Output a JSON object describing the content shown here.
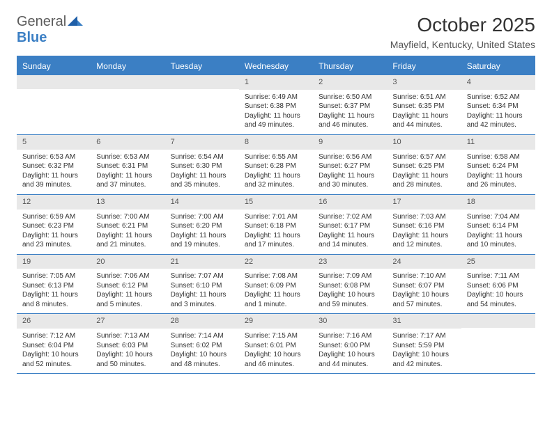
{
  "logo": {
    "text1": "General",
    "text2": "Blue"
  },
  "title": "October 2025",
  "location": "Mayfield, Kentucky, United States",
  "colors": {
    "header_bg": "#3b7fc4",
    "header_text": "#ffffff",
    "day_num_bg": "#e8e8e8",
    "text": "#333333",
    "border": "#3b7fc4"
  },
  "day_names": [
    "Sunday",
    "Monday",
    "Tuesday",
    "Wednesday",
    "Thursday",
    "Friday",
    "Saturday"
  ],
  "weeks": [
    [
      {
        "num": "",
        "sunrise": "",
        "sunset": "",
        "daylight": ""
      },
      {
        "num": "",
        "sunrise": "",
        "sunset": "",
        "daylight": ""
      },
      {
        "num": "",
        "sunrise": "",
        "sunset": "",
        "daylight": ""
      },
      {
        "num": "1",
        "sunrise": "Sunrise: 6:49 AM",
        "sunset": "Sunset: 6:38 PM",
        "daylight": "Daylight: 11 hours and 49 minutes."
      },
      {
        "num": "2",
        "sunrise": "Sunrise: 6:50 AM",
        "sunset": "Sunset: 6:37 PM",
        "daylight": "Daylight: 11 hours and 46 minutes."
      },
      {
        "num": "3",
        "sunrise": "Sunrise: 6:51 AM",
        "sunset": "Sunset: 6:35 PM",
        "daylight": "Daylight: 11 hours and 44 minutes."
      },
      {
        "num": "4",
        "sunrise": "Sunrise: 6:52 AM",
        "sunset": "Sunset: 6:34 PM",
        "daylight": "Daylight: 11 hours and 42 minutes."
      }
    ],
    [
      {
        "num": "5",
        "sunrise": "Sunrise: 6:53 AM",
        "sunset": "Sunset: 6:32 PM",
        "daylight": "Daylight: 11 hours and 39 minutes."
      },
      {
        "num": "6",
        "sunrise": "Sunrise: 6:53 AM",
        "sunset": "Sunset: 6:31 PM",
        "daylight": "Daylight: 11 hours and 37 minutes."
      },
      {
        "num": "7",
        "sunrise": "Sunrise: 6:54 AM",
        "sunset": "Sunset: 6:30 PM",
        "daylight": "Daylight: 11 hours and 35 minutes."
      },
      {
        "num": "8",
        "sunrise": "Sunrise: 6:55 AM",
        "sunset": "Sunset: 6:28 PM",
        "daylight": "Daylight: 11 hours and 32 minutes."
      },
      {
        "num": "9",
        "sunrise": "Sunrise: 6:56 AM",
        "sunset": "Sunset: 6:27 PM",
        "daylight": "Daylight: 11 hours and 30 minutes."
      },
      {
        "num": "10",
        "sunrise": "Sunrise: 6:57 AM",
        "sunset": "Sunset: 6:25 PM",
        "daylight": "Daylight: 11 hours and 28 minutes."
      },
      {
        "num": "11",
        "sunrise": "Sunrise: 6:58 AM",
        "sunset": "Sunset: 6:24 PM",
        "daylight": "Daylight: 11 hours and 26 minutes."
      }
    ],
    [
      {
        "num": "12",
        "sunrise": "Sunrise: 6:59 AM",
        "sunset": "Sunset: 6:23 PM",
        "daylight": "Daylight: 11 hours and 23 minutes."
      },
      {
        "num": "13",
        "sunrise": "Sunrise: 7:00 AM",
        "sunset": "Sunset: 6:21 PM",
        "daylight": "Daylight: 11 hours and 21 minutes."
      },
      {
        "num": "14",
        "sunrise": "Sunrise: 7:00 AM",
        "sunset": "Sunset: 6:20 PM",
        "daylight": "Daylight: 11 hours and 19 minutes."
      },
      {
        "num": "15",
        "sunrise": "Sunrise: 7:01 AM",
        "sunset": "Sunset: 6:18 PM",
        "daylight": "Daylight: 11 hours and 17 minutes."
      },
      {
        "num": "16",
        "sunrise": "Sunrise: 7:02 AM",
        "sunset": "Sunset: 6:17 PM",
        "daylight": "Daylight: 11 hours and 14 minutes."
      },
      {
        "num": "17",
        "sunrise": "Sunrise: 7:03 AM",
        "sunset": "Sunset: 6:16 PM",
        "daylight": "Daylight: 11 hours and 12 minutes."
      },
      {
        "num": "18",
        "sunrise": "Sunrise: 7:04 AM",
        "sunset": "Sunset: 6:14 PM",
        "daylight": "Daylight: 11 hours and 10 minutes."
      }
    ],
    [
      {
        "num": "19",
        "sunrise": "Sunrise: 7:05 AM",
        "sunset": "Sunset: 6:13 PM",
        "daylight": "Daylight: 11 hours and 8 minutes."
      },
      {
        "num": "20",
        "sunrise": "Sunrise: 7:06 AM",
        "sunset": "Sunset: 6:12 PM",
        "daylight": "Daylight: 11 hours and 5 minutes."
      },
      {
        "num": "21",
        "sunrise": "Sunrise: 7:07 AM",
        "sunset": "Sunset: 6:10 PM",
        "daylight": "Daylight: 11 hours and 3 minutes."
      },
      {
        "num": "22",
        "sunrise": "Sunrise: 7:08 AM",
        "sunset": "Sunset: 6:09 PM",
        "daylight": "Daylight: 11 hours and 1 minute."
      },
      {
        "num": "23",
        "sunrise": "Sunrise: 7:09 AM",
        "sunset": "Sunset: 6:08 PM",
        "daylight": "Daylight: 10 hours and 59 minutes."
      },
      {
        "num": "24",
        "sunrise": "Sunrise: 7:10 AM",
        "sunset": "Sunset: 6:07 PM",
        "daylight": "Daylight: 10 hours and 57 minutes."
      },
      {
        "num": "25",
        "sunrise": "Sunrise: 7:11 AM",
        "sunset": "Sunset: 6:06 PM",
        "daylight": "Daylight: 10 hours and 54 minutes."
      }
    ],
    [
      {
        "num": "26",
        "sunrise": "Sunrise: 7:12 AM",
        "sunset": "Sunset: 6:04 PM",
        "daylight": "Daylight: 10 hours and 52 minutes."
      },
      {
        "num": "27",
        "sunrise": "Sunrise: 7:13 AM",
        "sunset": "Sunset: 6:03 PM",
        "daylight": "Daylight: 10 hours and 50 minutes."
      },
      {
        "num": "28",
        "sunrise": "Sunrise: 7:14 AM",
        "sunset": "Sunset: 6:02 PM",
        "daylight": "Daylight: 10 hours and 48 minutes."
      },
      {
        "num": "29",
        "sunrise": "Sunrise: 7:15 AM",
        "sunset": "Sunset: 6:01 PM",
        "daylight": "Daylight: 10 hours and 46 minutes."
      },
      {
        "num": "30",
        "sunrise": "Sunrise: 7:16 AM",
        "sunset": "Sunset: 6:00 PM",
        "daylight": "Daylight: 10 hours and 44 minutes."
      },
      {
        "num": "31",
        "sunrise": "Sunrise: 7:17 AM",
        "sunset": "Sunset: 5:59 PM",
        "daylight": "Daylight: 10 hours and 42 minutes."
      },
      {
        "num": "",
        "sunrise": "",
        "sunset": "",
        "daylight": ""
      }
    ]
  ]
}
